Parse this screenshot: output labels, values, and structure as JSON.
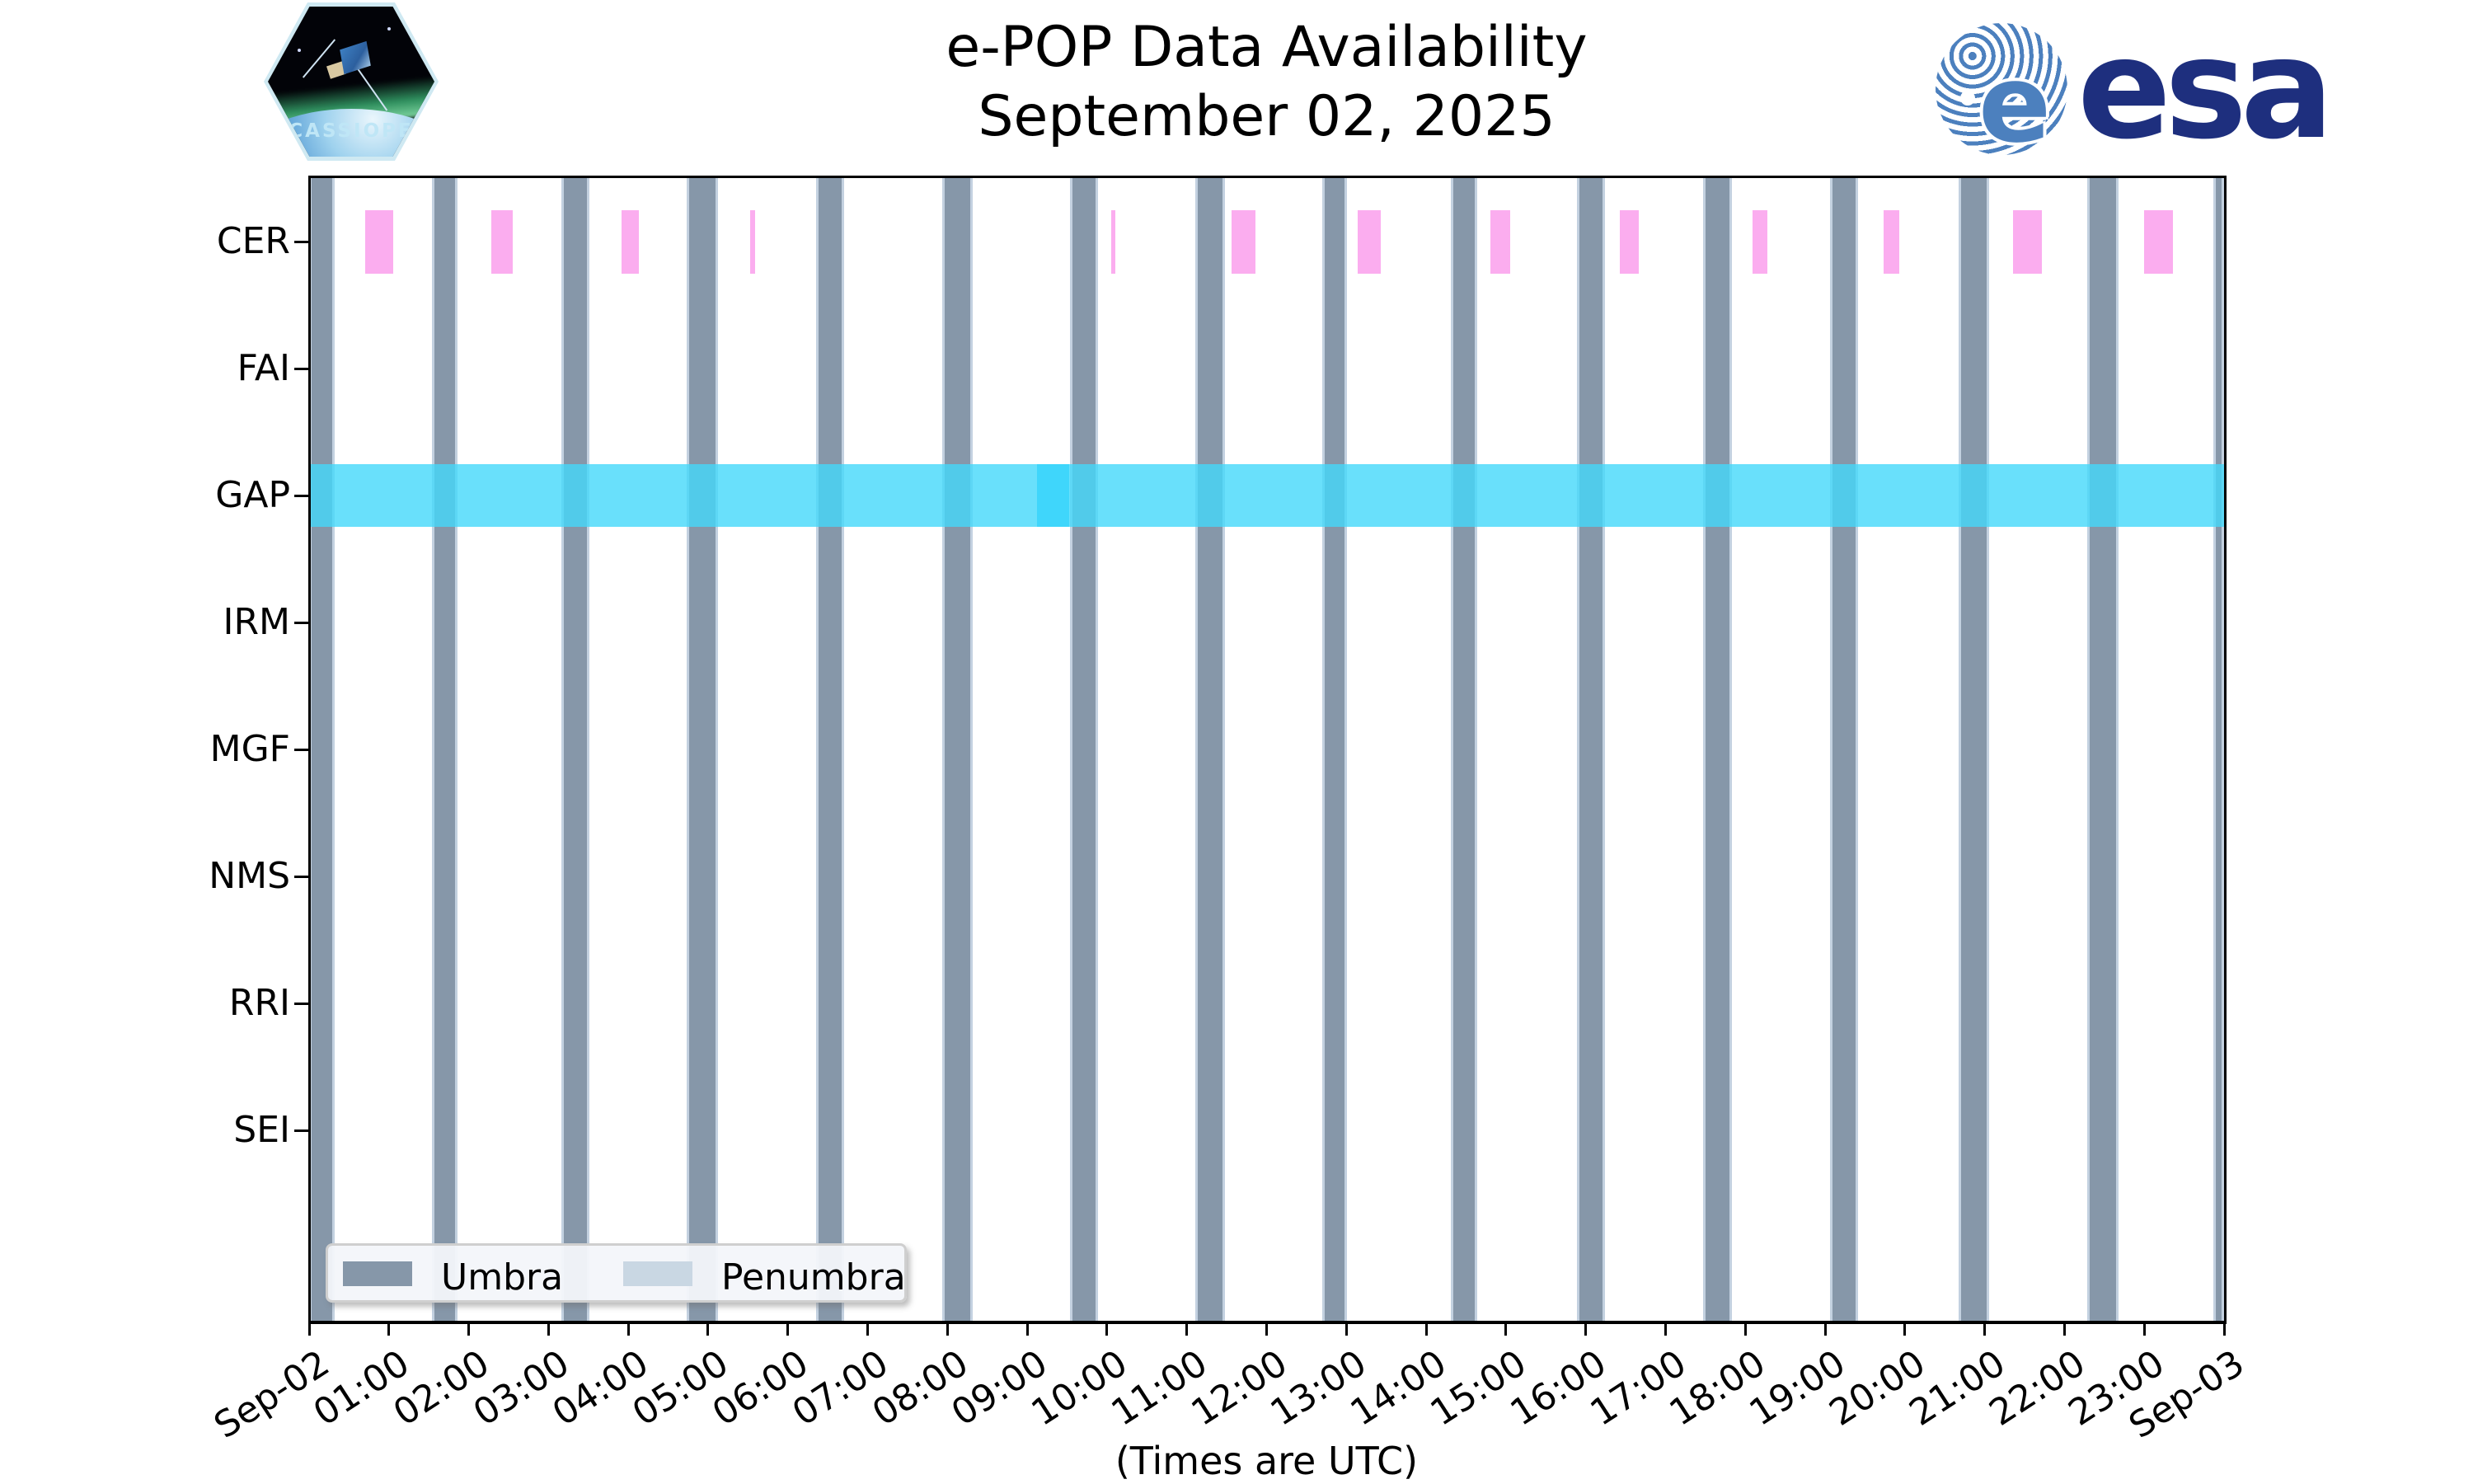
{
  "header": {
    "title": "e-POP Data Availability",
    "subtitle": "September 02, 2025",
    "cassiope_label": "CASSIOPE",
    "esa_label": "esa"
  },
  "footer": {
    "utc_note": "(Times are UTC)"
  },
  "chart_data": {
    "type": "bar",
    "title": "e-POP Data Availability",
    "subtitle": "September 02, 2025",
    "xlabel": "(Times are UTC)",
    "x_axis": {
      "unit": "hours-utc",
      "range_hours": [
        0,
        24
      ],
      "tick_labels": [
        "Sep-02",
        "01:00",
        "02:00",
        "03:00",
        "04:00",
        "05:00",
        "06:00",
        "07:00",
        "08:00",
        "09:00",
        "10:00",
        "11:00",
        "12:00",
        "13:00",
        "14:00",
        "15:00",
        "16:00",
        "17:00",
        "18:00",
        "19:00",
        "20:00",
        "21:00",
        "22:00",
        "23:00",
        "Sep-03"
      ]
    },
    "y_categories": [
      "CER",
      "FAI",
      "GAP",
      "IRM",
      "MGF",
      "NMS",
      "RRI",
      "SEI"
    ],
    "legend": {
      "position": "lower-left",
      "entries": [
        {
          "label": "Umbra",
          "color": "#8697a9"
        },
        {
          "label": "Penumbra",
          "color": "#c9d7e3"
        }
      ]
    },
    "colors": {
      "umbra": "#8697a9",
      "penumbra_edge": "#c3d1e0",
      "cer_availability": "#fbadef",
      "gap_availability": "rgba(68,216,250,0.8)",
      "gap_overlap": "rgba(0,200,252,0.4)"
    },
    "series": [
      {
        "name": "Umbra",
        "kind": "full-height-background",
        "color": "#8697a9",
        "intervals_hours": [
          [
            0.0,
            0.32
          ],
          [
            1.54,
            1.86
          ],
          [
            3.16,
            3.51
          ],
          [
            4.73,
            5.12
          ],
          [
            6.35,
            6.71
          ],
          [
            7.93,
            8.32
          ],
          [
            9.54,
            9.89
          ],
          [
            11.11,
            11.48
          ],
          [
            12.7,
            13.01
          ],
          [
            14.31,
            14.64
          ],
          [
            15.89,
            16.24
          ],
          [
            17.47,
            17.83
          ],
          [
            19.06,
            19.41
          ],
          [
            20.67,
            21.06
          ],
          [
            22.28,
            22.68
          ],
          [
            23.87,
            24.0
          ]
        ]
      },
      {
        "name": "CER data",
        "row": "CER",
        "color": "#fbadef",
        "intervals_hours": [
          [
            0.7,
            1.05
          ],
          [
            2.28,
            2.55
          ],
          [
            3.92,
            4.13
          ],
          [
            5.53,
            5.59
          ],
          [
            10.05,
            10.1
          ],
          [
            11.56,
            11.86
          ],
          [
            13.14,
            13.43
          ],
          [
            14.8,
            15.05
          ],
          [
            16.43,
            16.66
          ],
          [
            18.09,
            18.28
          ],
          [
            19.73,
            19.93
          ],
          [
            21.36,
            21.72
          ],
          [
            23.0,
            23.36
          ]
        ]
      },
      {
        "name": "GAP data",
        "row": "GAP",
        "color": "rgba(68,216,250,0.8)",
        "intervals_hours": [
          [
            0.0,
            24.0
          ]
        ],
        "overlap_intervals_hours": [
          [
            9.12,
            9.53
          ]
        ]
      }
    ]
  }
}
